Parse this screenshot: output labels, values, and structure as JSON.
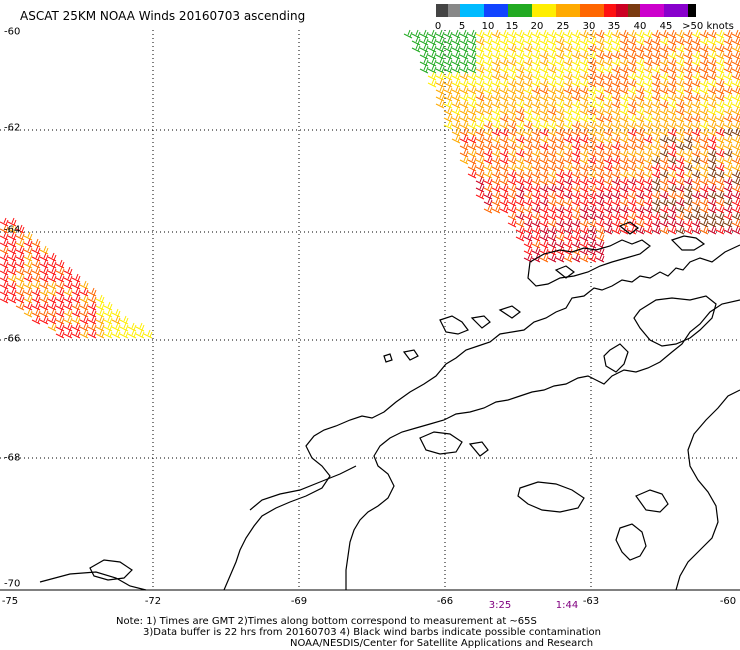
{
  "title": "ASCAT 25KM NOAA Winds 20160703 ascending",
  "legend": {
    "colors": [
      "#444444",
      "#888888",
      "#00bbff",
      "#1144ff",
      "#22aa22",
      "#ffee00",
      "#ffaa00",
      "#ff6600",
      "#ff1111",
      "#cc0022",
      "#7a3a10",
      "#cc00cc",
      "#8800cc",
      "#000000"
    ],
    "labels": [
      "0",
      "5",
      "10",
      "15",
      "20",
      "25",
      "30",
      "35",
      "40",
      "45",
      ">50 knots"
    ]
  },
  "axes": {
    "y_labels": [
      "-60",
      "-62",
      "-64",
      "-66",
      "-68",
      "-70"
    ],
    "x_labels": [
      "-75",
      "-72",
      "-69",
      "-66",
      "-63",
      "-60"
    ]
  },
  "pass_times": [
    "3:25",
    "1:44"
  ],
  "notes": [
    "Note: 1) Times are GMT 2)Times along bottom correspond to measurement at ~65S",
    "3)Data buffer is 22 hrs from 20160703 4) Black wind barbs indicate possible contamination",
    "NOAA/NESDIS/Center for Satellite Applications and Research"
  ]
}
